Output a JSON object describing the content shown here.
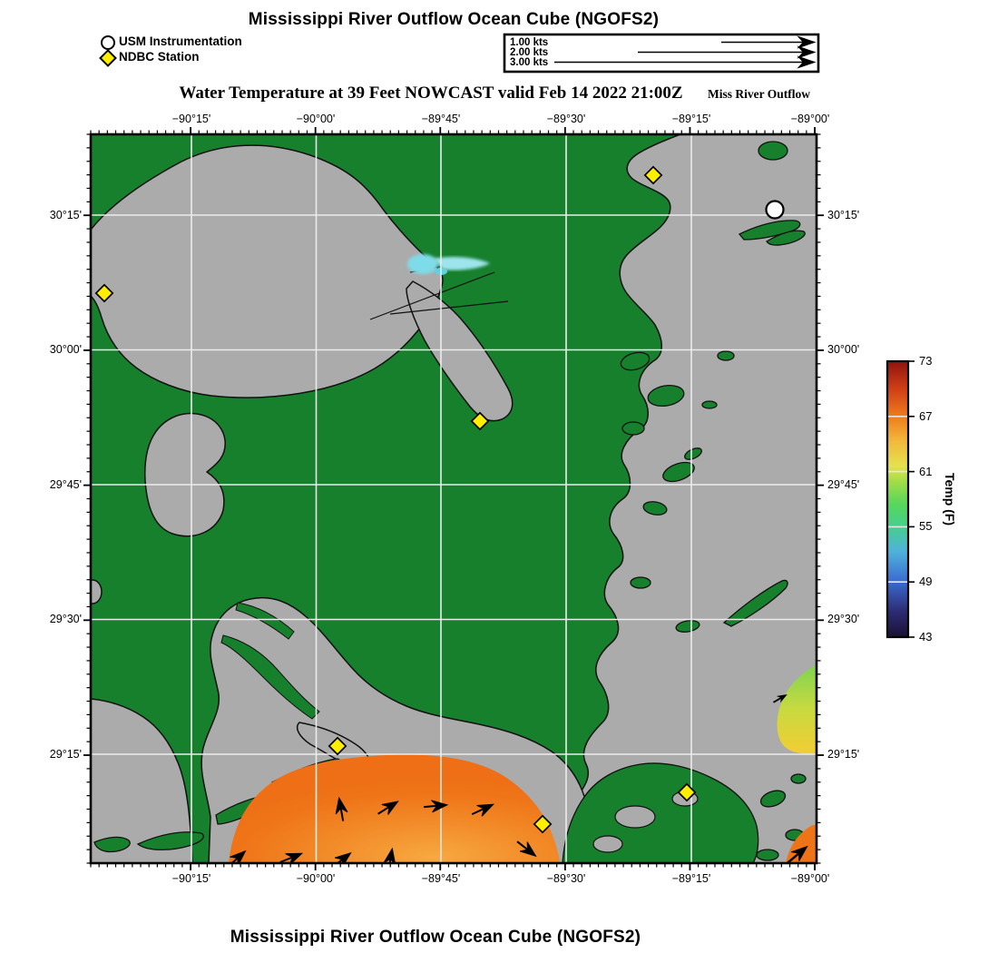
{
  "header": {
    "title": "Mississippi River Outflow Ocean Cube (NGOFS2)",
    "legend": {
      "usm_label": "USM Instrumentation",
      "ndbc_label": "NDBC Station"
    },
    "velocity_scale": {
      "rows": [
        "1.00 kts",
        "2.00 kts",
        "3.00 kts"
      ]
    }
  },
  "subtitle": {
    "text": "Water Temperature at 39 Feet NOWCAST valid Feb 14 2022 21:00Z",
    "region": "Miss River Outflow"
  },
  "footer": {
    "title": "Mississippi River Outflow Ocean Cube (NGOFS2)"
  },
  "map": {
    "top_axis": [
      "−90°15'",
      "−90°00'",
      "−89°45'",
      "−89°30'",
      "−89°15'",
      "−89°00'"
    ],
    "bottom_axis": [
      "−90°15'",
      "−90°00'",
      "−89°45'",
      "−89°30'",
      "−89°15'",
      "−89°00'"
    ],
    "left_axis": [
      "30°15'",
      "30°00'",
      "29°45'",
      "29°30'",
      "29°15'"
    ],
    "right_axis": [
      "30°15'",
      "30°00'",
      "29°45'",
      "29°30'",
      "29°15'"
    ],
    "colors": {
      "water": "#17802d",
      "land": "#ababab",
      "river_plume": "#7edbe8",
      "warm_plume": "#ef7418",
      "warm_plume_core": "#f7a93f",
      "gridline": "#ececec",
      "station_ndbc": "#ffee00",
      "station_usm": "#ffffff"
    }
  },
  "colorbar": {
    "title": "Temp (F)",
    "tick_labels": [
      "73",
      "67",
      "61",
      "55",
      "49",
      "43"
    ],
    "min": 43,
    "max": 73
  },
  "map_data": {
    "type": "geo-map",
    "variable": "Water Temperature at 39 Feet",
    "cycle": "NOWCAST valid Feb 14 2022 21:00Z",
    "lon_range": [
      "-90°27'",
      "-89°00'"
    ],
    "lat_range": [
      "29°03'",
      "30°24'"
    ],
    "colorbar_range_F": [
      43,
      73
    ],
    "colorbar_ticks_F": [
      43,
      49,
      55,
      61,
      67,
      73
    ],
    "stations": [
      {
        "type": "NDBC Station",
        "lon": "-90°25'",
        "lat": "30°06'"
      },
      {
        "type": "NDBC Station",
        "lon": "-89°20'",
        "lat": "30°19'"
      },
      {
        "type": "NDBC Station",
        "lon": "-89°40'",
        "lat": "29°52'"
      },
      {
        "type": "NDBC Station",
        "lon": "-89°57'",
        "lat": "29°16'"
      },
      {
        "type": "NDBC Station",
        "lon": "-89°33'",
        "lat": "29°07'"
      },
      {
        "type": "NDBC Station",
        "lon": "-89°16'",
        "lat": "29°11'"
      },
      {
        "type": "USM Instrumentation",
        "lon": "-89°05'",
        "lat": "30°16'"
      }
    ],
    "features": [
      "cold river plume (~50F, cyan) at Pearl River mouth",
      "warm outflow plume (~65-68F, orange) south of Mississippi delta with current vectors",
      "warm patch (~58-63F) at eastern map edge near 29°20'"
    ]
  }
}
